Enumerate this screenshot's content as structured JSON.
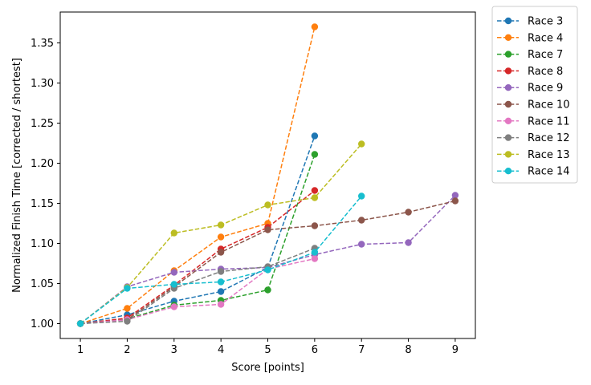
{
  "chart_data": {
    "type": "line",
    "title": "",
    "xlabel": "Score [points]",
    "ylabel": "Normalized Finish Time [corrected / shortest]",
    "xlim": [
      0.57,
      9.43
    ],
    "ylim": [
      0.9815,
      1.3885
    ],
    "xticks": [
      1,
      2,
      3,
      4,
      5,
      6,
      7,
      8,
      9
    ],
    "yticks": [
      1.0,
      1.05,
      1.1,
      1.15,
      1.2,
      1.25,
      1.3,
      1.35
    ],
    "ytick_labels": [
      "1.00",
      "1.05",
      "1.10",
      "1.15",
      "1.20",
      "1.25",
      "1.30",
      "1.35"
    ],
    "grid": false,
    "legend_position": "outside-top-right",
    "line_style": "dashed",
    "marker": "circle",
    "series": [
      {
        "name": "Race 3",
        "color": "#1f77b4",
        "x": [
          1,
          2,
          3,
          4,
          5,
          6
        ],
        "y": [
          1.0,
          1.011,
          1.028,
          1.04,
          1.07,
          1.234
        ]
      },
      {
        "name": "Race 4",
        "color": "#ff7f0e",
        "x": [
          1,
          2,
          3,
          4,
          5,
          6
        ],
        "y": [
          1.0,
          1.019,
          1.066,
          1.108,
          1.125,
          1.37
        ]
      },
      {
        "name": "Race 7",
        "color": "#2ca02c",
        "x": [
          1,
          2,
          3,
          4,
          5,
          6
        ],
        "y": [
          1.0,
          1.006,
          1.023,
          1.029,
          1.042,
          1.211
        ]
      },
      {
        "name": "Race 8",
        "color": "#d62728",
        "x": [
          1,
          2,
          3,
          4,
          5,
          6
        ],
        "y": [
          1.0,
          1.007,
          1.048,
          1.093,
          1.12,
          1.166
        ]
      },
      {
        "name": "Race 9",
        "color": "#9467bd",
        "x": [
          1,
          2,
          3,
          4,
          5,
          6,
          7,
          8,
          9
        ],
        "y": [
          1.0,
          1.046,
          1.064,
          1.068,
          1.07,
          1.086,
          1.099,
          1.101,
          1.16
        ]
      },
      {
        "name": "Race 10",
        "color": "#8c564b",
        "x": [
          1,
          2,
          3,
          4,
          5,
          6,
          7,
          8,
          9
        ],
        "y": [
          1.0,
          1.005,
          1.046,
          1.089,
          1.117,
          1.122,
          1.129,
          1.139,
          1.153
        ]
      },
      {
        "name": "Race 11",
        "color": "#e377c2",
        "x": [
          1,
          2,
          3,
          4,
          5,
          6
        ],
        "y": [
          1.0,
          1.005,
          1.021,
          1.024,
          1.068,
          1.081
        ]
      },
      {
        "name": "Race 12",
        "color": "#7f7f7f",
        "x": [
          1,
          2,
          3,
          4,
          5,
          6
        ],
        "y": [
          1.0,
          1.003,
          1.044,
          1.065,
          1.071,
          1.094
        ]
      },
      {
        "name": "Race 13",
        "color": "#bcbd22",
        "x": [
          1,
          2,
          3,
          4,
          5,
          6,
          7
        ],
        "y": [
          1.0,
          1.045,
          1.113,
          1.123,
          1.148,
          1.157,
          1.224
        ]
      },
      {
        "name": "Race 14",
        "color": "#17becf",
        "x": [
          1,
          2,
          3,
          4,
          5,
          6,
          7
        ],
        "y": [
          1.0,
          1.044,
          1.049,
          1.052,
          1.067,
          1.089,
          1.159
        ]
      }
    ]
  }
}
